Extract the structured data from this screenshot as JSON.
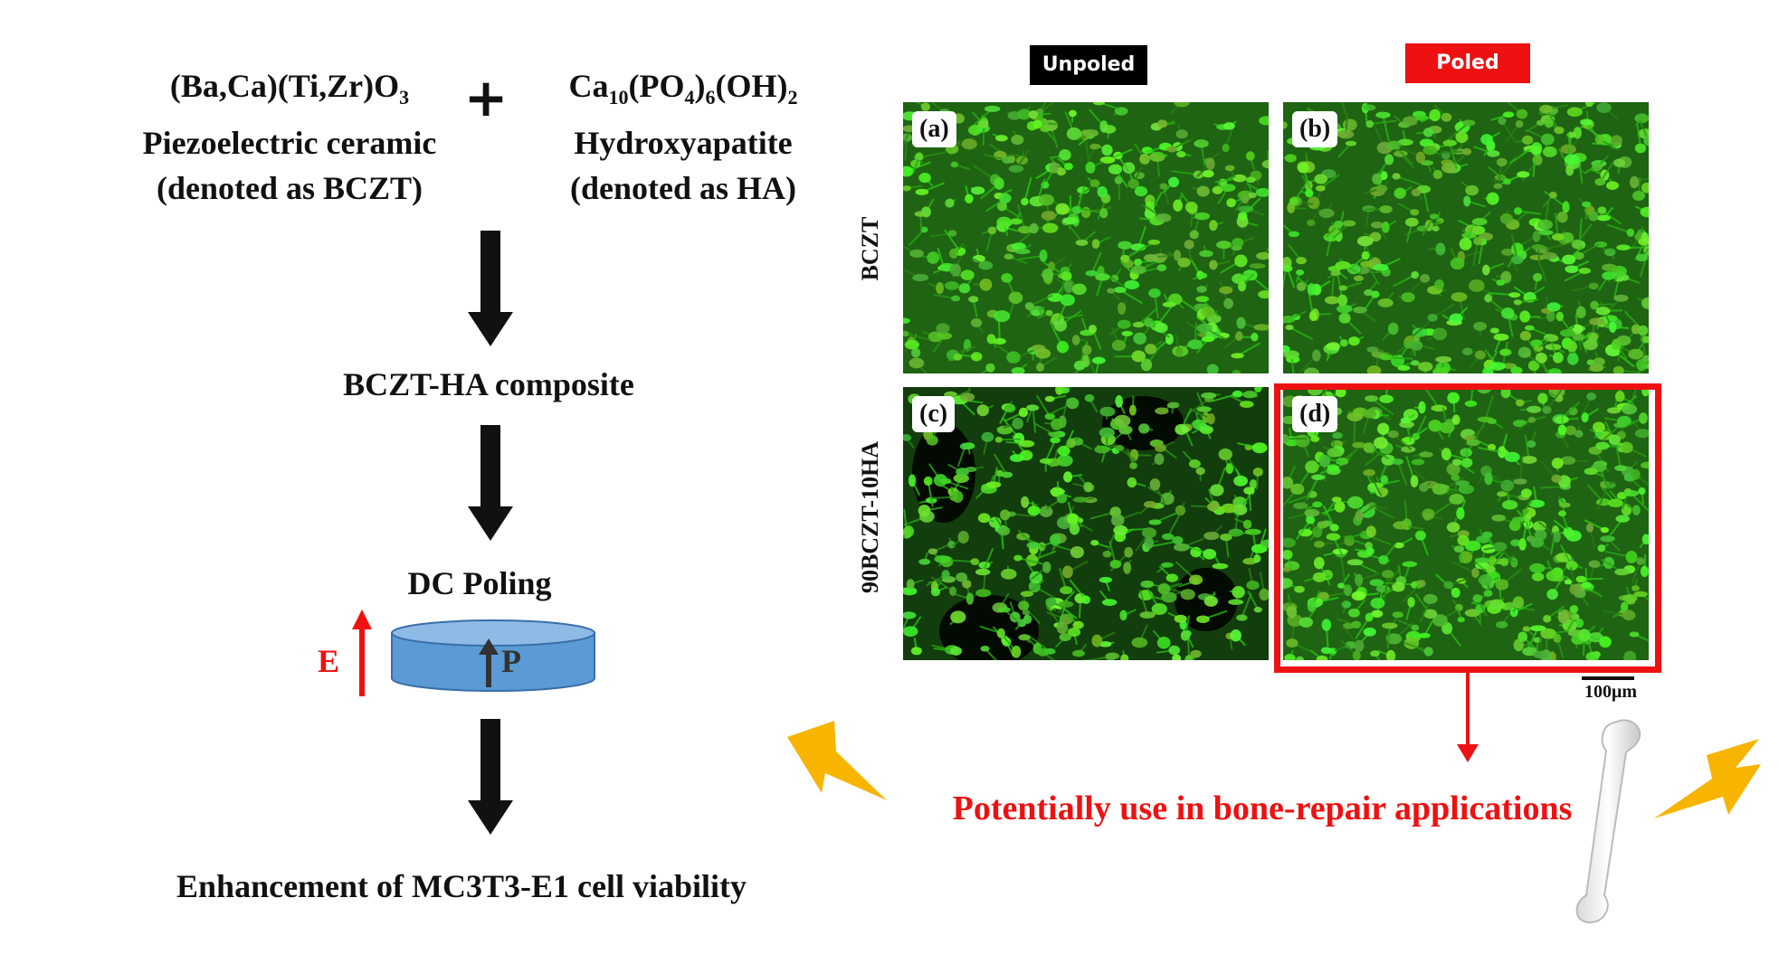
{
  "left": {
    "bczt_formula": "(Ba,Ca)(Ti,Zr)O",
    "bczt_formula_sub": "3",
    "bczt_name": "Piezoelectric ceramic",
    "bczt_denoted": "(denoted as BCZT)",
    "plus_sign": "+",
    "ha_formula_parts": [
      "Ca",
      "10",
      "(PO",
      "4",
      ")",
      "6",
      "(OH)",
      "2"
    ],
    "ha_name": "Hydroxyapatite",
    "ha_denoted": "(denoted as HA)",
    "composite_label": "BCZT-HA composite",
    "poling_label": "DC Poling",
    "field_label": "E",
    "polarization_label": "P",
    "result_label": "Enhancement of MC3T3-E1 cell viability"
  },
  "grid": {
    "col_headers": [
      "Unpoled",
      "Poled"
    ],
    "row_labels": [
      "BCZT",
      "90BCZT-10HA"
    ],
    "panels": [
      "(a)",
      "(b)",
      "(c)",
      "(d)"
    ],
    "scale_bar": "100μm"
  },
  "conclusion": "Potentially use in bone-repair applications",
  "colors": {
    "red": "#ee1111",
    "unpoled_header_bg": "#000000",
    "poled_header_bg": "#ee1111",
    "cell_green": "#4cd32a",
    "disc_fill": "#5b9bd5",
    "lightning": "#f7b500"
  },
  "icons": [
    "plus-icon",
    "down-arrow-icon",
    "up-arrow-icon",
    "lightning-icon",
    "bone-icon"
  ]
}
